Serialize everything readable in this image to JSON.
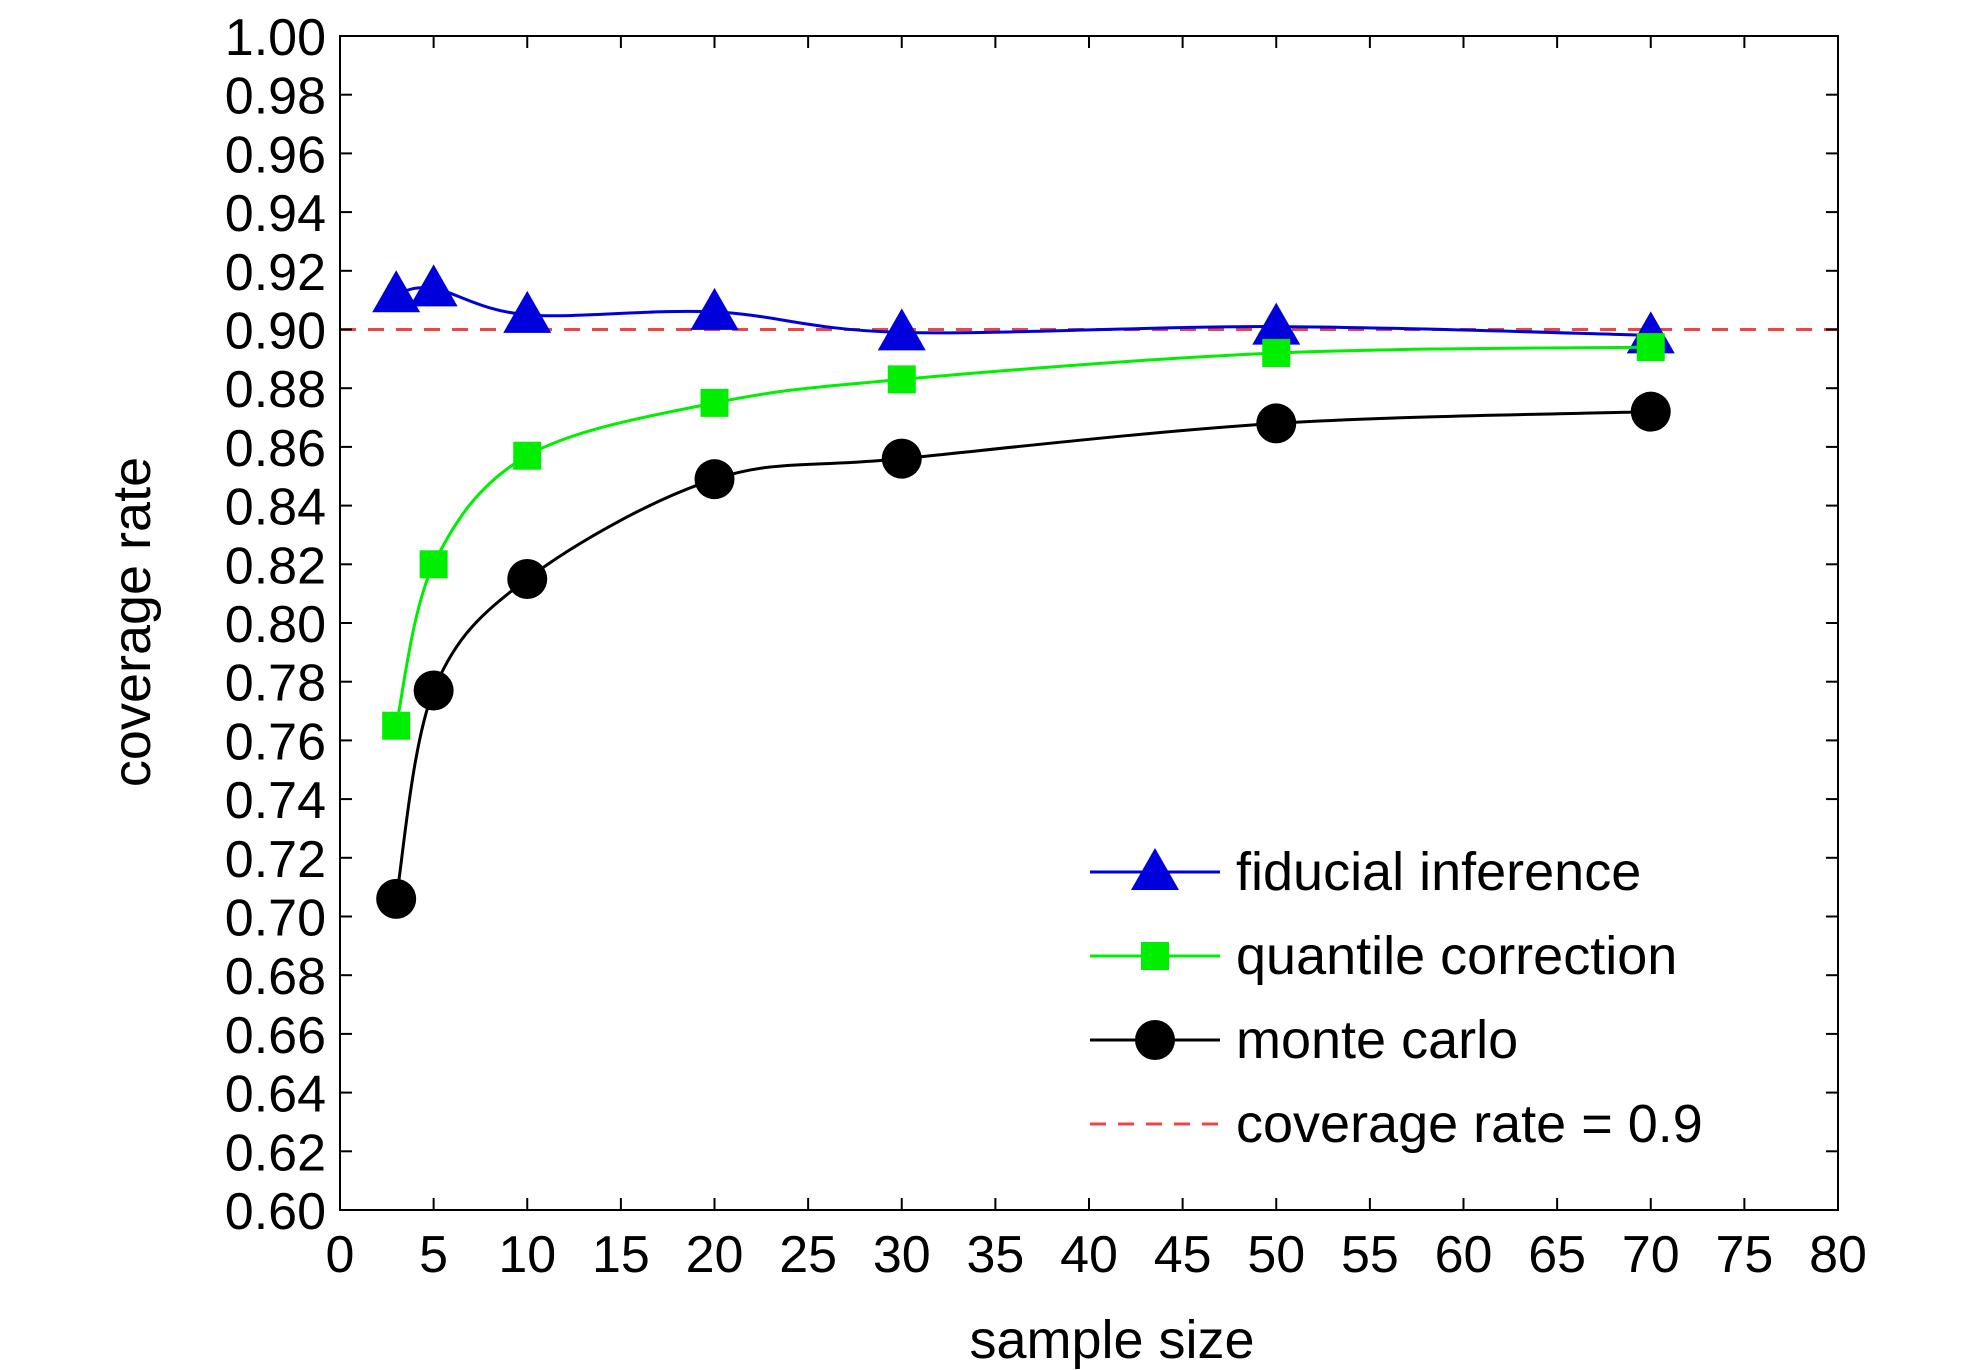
{
  "chart_data": {
    "type": "line",
    "title": "",
    "xlabel": "sample size",
    "ylabel": "coverage rate",
    "xlim": [
      0,
      80
    ],
    "ylim": [
      0.6,
      1.0
    ],
    "x_ticks": [
      0,
      5,
      10,
      15,
      20,
      25,
      30,
      35,
      40,
      45,
      50,
      55,
      60,
      65,
      70,
      75,
      80
    ],
    "y_ticks": [
      "1.00",
      "0.98",
      "0.96",
      "0.94",
      "0.92",
      "0.90",
      "0.88",
      "0.86",
      "0.84",
      "0.82",
      "0.80",
      "0.78",
      "0.76",
      "0.74",
      "0.72",
      "0.70",
      "0.68",
      "0.66",
      "0.64",
      "0.62",
      "0.60"
    ],
    "grid": false,
    "legend_position": "bottom-right",
    "series": [
      {
        "name": "fiducial inference",
        "color": "#0000dd",
        "marker": "triangle",
        "x": [
          3,
          5,
          10,
          20,
          30,
          50,
          70
        ],
        "y": [
          0.912,
          0.914,
          0.905,
          0.906,
          0.899,
          0.901,
          0.898
        ]
      },
      {
        "name": "quantile correction",
        "color": "#00ee00",
        "marker": "square",
        "x": [
          3,
          5,
          10,
          20,
          30,
          50,
          70
        ],
        "y": [
          0.765,
          0.82,
          0.857,
          0.875,
          0.883,
          0.892,
          0.894
        ]
      },
      {
        "name": "monte carlo",
        "color": "#000000",
        "marker": "circle",
        "x": [
          3,
          5,
          10,
          20,
          30,
          50,
          70
        ],
        "y": [
          0.706,
          0.777,
          0.815,
          0.849,
          0.856,
          0.868,
          0.872
        ]
      }
    ],
    "reference_line": {
      "name": "coverage rate = 0.9",
      "y": 0.9,
      "color": "#ee4444",
      "style": "dashed"
    }
  }
}
